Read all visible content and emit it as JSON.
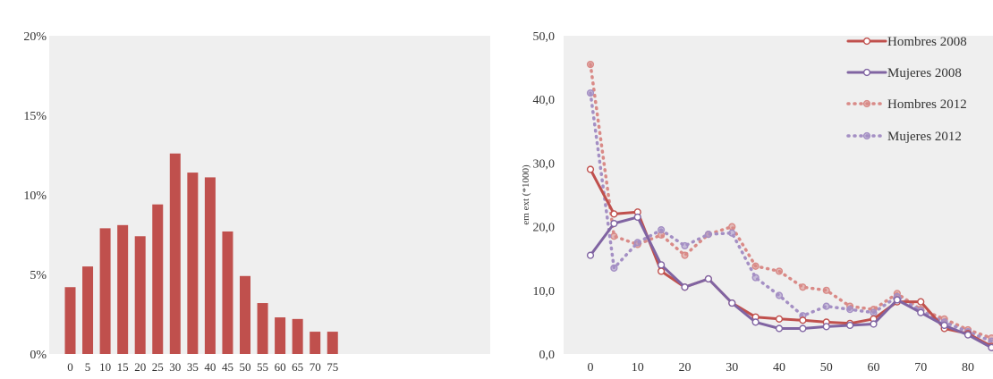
{
  "colors": {
    "panel_bg": "#efefef",
    "bar": "#c0504d",
    "hombres": "#c0504d",
    "mujeres": "#8064a2",
    "hombres_light": "#d98a87",
    "mujeres_light": "#a48fc4"
  },
  "chart_data": [
    {
      "type": "bar",
      "categories": [
        "0",
        "5",
        "10",
        "15",
        "20",
        "25",
        "30",
        "35",
        "40",
        "45",
        "50",
        "55",
        "60",
        "65",
        "70",
        "75"
      ],
      "values": [
        4.2,
        5.5,
        7.9,
        8.1,
        7.4,
        9.4,
        12.6,
        11.4,
        11.1,
        7.7,
        4.9,
        3.2,
        2.3,
        2.2,
        1.4,
        1.4
      ],
      "value_format": "percent",
      "ylim": [
        0,
        20
      ],
      "yticks": [
        0,
        5,
        10,
        15,
        20
      ],
      "ytick_labels": [
        "0%",
        "5%",
        "10%",
        "15%",
        "20%"
      ],
      "grid": false,
      "legend": "none"
    },
    {
      "type": "line",
      "x": [
        0,
        5,
        10,
        15,
        20,
        25,
        30,
        35,
        40,
        45,
        50,
        55,
        60,
        65,
        70,
        75,
        80,
        85
      ],
      "ylabel": "em ext (*1000)",
      "xlim": [
        0,
        85
      ],
      "ylim": [
        0,
        50
      ],
      "xticks": [
        0,
        10,
        20,
        30,
        40,
        50,
        60,
        70,
        80
      ],
      "yticks": [
        0,
        10,
        20,
        30,
        40,
        50
      ],
      "ytick_labels": [
        "0,0",
        "10,0",
        "20,0",
        "30,0",
        "40,0",
        "50,0"
      ],
      "grid": false,
      "legend": "top-right",
      "series": [
        {
          "name": "Hombres 2008",
          "style": "solid",
          "color_key": "hombres",
          "values": [
            29.0,
            22.0,
            22.3,
            13.0,
            10.5,
            11.8,
            8.0,
            5.8,
            5.5,
            5.3,
            5.0,
            4.8,
            5.5,
            8.2,
            8.2,
            4.0,
            3.2,
            1.2
          ]
        },
        {
          "name": "Mujeres 2008",
          "style": "solid",
          "color_key": "mujeres",
          "values": [
            15.5,
            20.5,
            21.5,
            14.0,
            10.5,
            11.8,
            8.0,
            5.0,
            4.0,
            4.0,
            4.3,
            4.5,
            4.7,
            8.5,
            6.5,
            4.5,
            3.0,
            1.0
          ]
        },
        {
          "name": "Hombres 2012",
          "style": "dotted",
          "color_key": "hombres_light",
          "values": [
            45.5,
            18.5,
            17.2,
            18.7,
            15.5,
            18.8,
            20.0,
            13.8,
            13.0,
            10.5,
            10.0,
            7.5,
            7.0,
            9.5,
            7.0,
            5.5,
            3.8,
            2.5
          ]
        },
        {
          "name": "Mujeres 2012",
          "style": "dotted",
          "color_key": "mujeres_light",
          "values": [
            41.0,
            13.5,
            17.5,
            19.5,
            17.0,
            18.8,
            19.0,
            12.0,
            9.2,
            6.0,
            7.5,
            7.0,
            6.5,
            9.0,
            6.8,
            5.0,
            3.5,
            2.0
          ]
        }
      ]
    }
  ]
}
